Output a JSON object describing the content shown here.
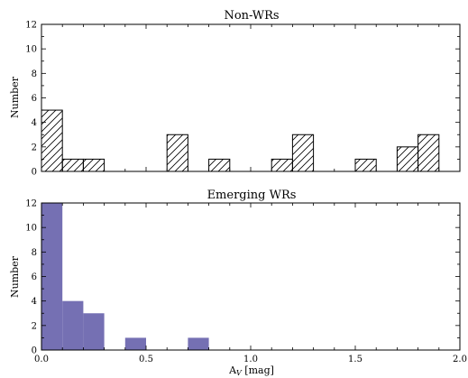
{
  "chart_data": [
    {
      "type": "bar",
      "title": "Non-WRs",
      "xlabel": "",
      "ylabel": "Number",
      "xlim": [
        0.0,
        2.0
      ],
      "ylim": [
        0,
        12
      ],
      "yticks": [
        "0",
        "2",
        "4",
        "6",
        "8",
        "10",
        "12"
      ],
      "bin_width": 0.1,
      "fill": "hatched",
      "bins": [
        {
          "x": 0.0,
          "value": 5
        },
        {
          "x": 0.1,
          "value": 1
        },
        {
          "x": 0.2,
          "value": 1
        },
        {
          "x": 0.6,
          "value": 3
        },
        {
          "x": 0.8,
          "value": 1
        },
        {
          "x": 1.1,
          "value": 1
        },
        {
          "x": 1.2,
          "value": 3
        },
        {
          "x": 1.5,
          "value": 1
        },
        {
          "x": 1.7,
          "value": 2
        },
        {
          "x": 1.8,
          "value": 3
        }
      ]
    },
    {
      "type": "bar",
      "title": "Emerging WRs",
      "xlabel": "A_V [mag]",
      "xlabel_main": "A",
      "xlabel_sub": "V",
      "xlabel_rest": " [mag]",
      "ylabel": "Number",
      "xlim": [
        0.0,
        2.0
      ],
      "ylim": [
        0,
        12
      ],
      "xticks": [
        "0.0",
        "0.5",
        "1.0",
        "1.5",
        "2.0"
      ],
      "yticks": [
        "0",
        "2",
        "4",
        "6",
        "8",
        "10",
        "12"
      ],
      "bin_width": 0.1,
      "fill": "#7570b3",
      "bins": [
        {
          "x": 0.0,
          "value": 12
        },
        {
          "x": 0.1,
          "value": 4
        },
        {
          "x": 0.2,
          "value": 3
        },
        {
          "x": 0.4,
          "value": 1
        },
        {
          "x": 0.7,
          "value": 1
        }
      ]
    }
  ]
}
